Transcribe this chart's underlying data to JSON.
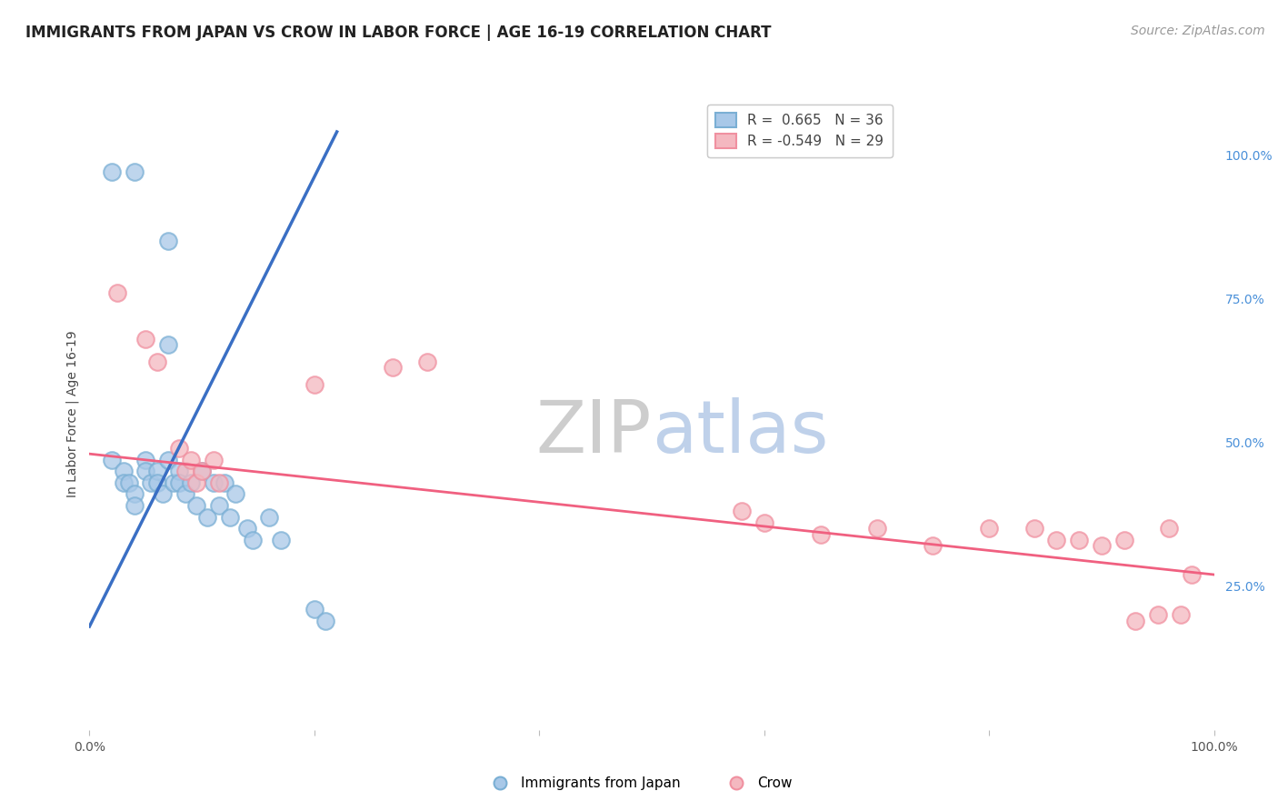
{
  "title": "IMMIGRANTS FROM JAPAN VS CROW IN LABOR FORCE | AGE 16-19 CORRELATION CHART",
  "source": "Source: ZipAtlas.com",
  "ylabel": "In Labor Force | Age 16-19",
  "xlim": [
    0.0,
    1.0
  ],
  "ylim": [
    0.0,
    1.1
  ],
  "yticks_right": [
    0.25,
    0.5,
    0.75,
    1.0
  ],
  "ytick_labels_right": [
    "25.0%",
    "50.0%",
    "75.0%",
    "100.0%"
  ],
  "legend_blue_r": "0.665",
  "legend_blue_n": "36",
  "legend_pink_r": "-0.549",
  "legend_pink_n": "29",
  "blue_color": "#a8c8e8",
  "pink_color": "#f4b8c0",
  "blue_edge_color": "#7aafd4",
  "pink_edge_color": "#f090a0",
  "blue_line_color": "#3a6fc4",
  "pink_line_color": "#f06080",
  "right_axis_color": "#4a90d9",
  "blue_scatter_x": [
    0.02,
    0.04,
    0.07,
    0.07,
    0.02,
    0.03,
    0.03,
    0.035,
    0.04,
    0.04,
    0.05,
    0.05,
    0.055,
    0.06,
    0.06,
    0.065,
    0.07,
    0.075,
    0.08,
    0.08,
    0.085,
    0.09,
    0.095,
    0.1,
    0.105,
    0.11,
    0.115,
    0.12,
    0.125,
    0.13,
    0.14,
    0.145,
    0.16,
    0.17,
    0.2,
    0.21
  ],
  "blue_scatter_y": [
    0.97,
    0.97,
    0.85,
    0.67,
    0.47,
    0.45,
    0.43,
    0.43,
    0.41,
    0.39,
    0.47,
    0.45,
    0.43,
    0.45,
    0.43,
    0.41,
    0.47,
    0.43,
    0.45,
    0.43,
    0.41,
    0.43,
    0.39,
    0.45,
    0.37,
    0.43,
    0.39,
    0.43,
    0.37,
    0.41,
    0.35,
    0.33,
    0.37,
    0.33,
    0.21,
    0.19
  ],
  "pink_scatter_x": [
    0.025,
    0.05,
    0.06,
    0.08,
    0.085,
    0.09,
    0.095,
    0.1,
    0.11,
    0.115,
    0.2,
    0.27,
    0.3,
    0.58,
    0.6,
    0.65,
    0.7,
    0.75,
    0.8,
    0.84,
    0.86,
    0.88,
    0.9,
    0.92,
    0.93,
    0.95,
    0.96,
    0.97,
    0.98
  ],
  "pink_scatter_y": [
    0.76,
    0.68,
    0.64,
    0.49,
    0.45,
    0.47,
    0.43,
    0.45,
    0.47,
    0.43,
    0.6,
    0.63,
    0.64,
    0.38,
    0.36,
    0.34,
    0.35,
    0.32,
    0.35,
    0.35,
    0.33,
    0.33,
    0.32,
    0.33,
    0.19,
    0.2,
    0.35,
    0.2,
    0.27
  ],
  "blue_line_x": [
    0.0,
    0.22
  ],
  "blue_line_y": [
    0.18,
    1.04
  ],
  "pink_line_x": [
    0.0,
    1.0
  ],
  "pink_line_y": [
    0.48,
    0.27
  ],
  "background_color": "#ffffff",
  "grid_color": "#e0e0e0",
  "title_fontsize": 12,
  "label_fontsize": 10,
  "tick_fontsize": 10,
  "legend_fontsize": 11,
  "source_fontsize": 10
}
